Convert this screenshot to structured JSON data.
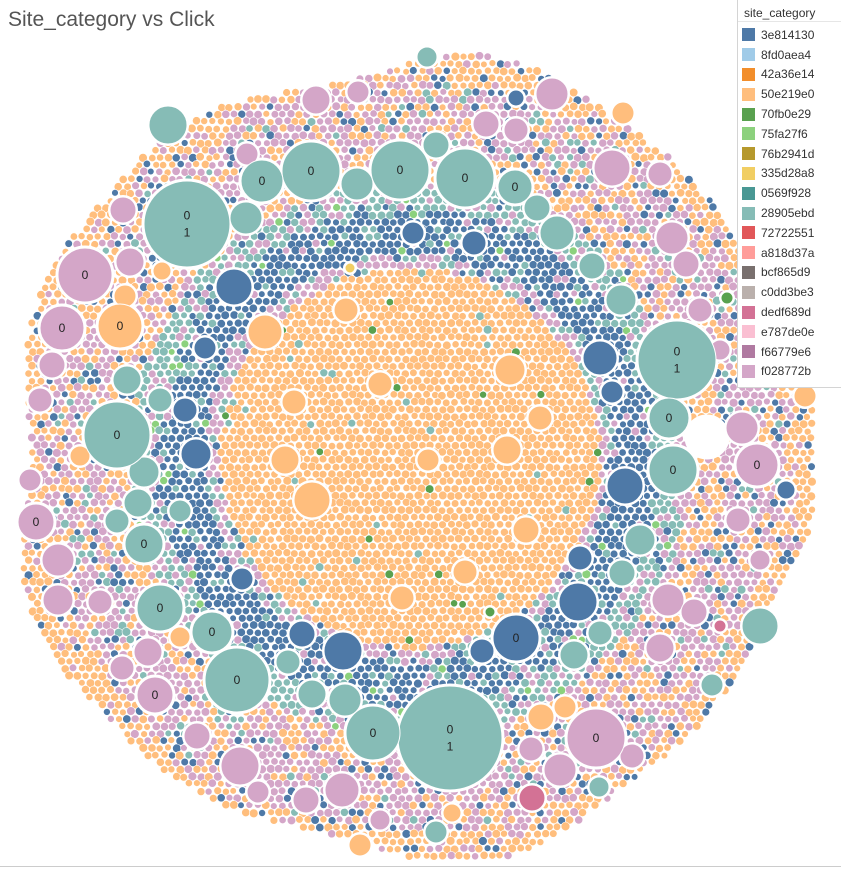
{
  "title": "Site_category vs Click",
  "legend": {
    "title": "site_category",
    "items": [
      {
        "label": "3e814130",
        "color": "#4e79a7"
      },
      {
        "label": "8fd0aea4",
        "color": "#a0cbe8"
      },
      {
        "label": "42a36e14",
        "color": "#f28e2b"
      },
      {
        "label": "50e219e0",
        "color": "#ffbe7d"
      },
      {
        "label": "70fb0e29",
        "color": "#59a14f"
      },
      {
        "label": "75fa27f6",
        "color": "#8cd17d"
      },
      {
        "label": "76b2941d",
        "color": "#b6992d"
      },
      {
        "label": "335d28a8",
        "color": "#f1ce63"
      },
      {
        "label": "0569f928",
        "color": "#499894"
      },
      {
        "label": "28905ebd",
        "color": "#86bcb6"
      },
      {
        "label": "72722551",
        "color": "#e15759"
      },
      {
        "label": "a818d37a",
        "color": "#ff9d9a"
      },
      {
        "label": "bcf865d9",
        "color": "#79706e"
      },
      {
        "label": "c0dd3be3",
        "color": "#bab0ac"
      },
      {
        "label": "dedf689d",
        "color": "#d37295"
      },
      {
        "label": "e787de0e",
        "color": "#fabfd2"
      },
      {
        "label": "f66779e6",
        "color": "#b07aa1"
      },
      {
        "label": "f028772b",
        "color": "#d4a6c8"
      }
    ]
  },
  "chart_data": {
    "type": "packed-bubble",
    "title": "Site_category vs Click",
    "color_field": "site_category",
    "label_field": "Click",
    "labeled_bubbles": [
      {
        "category": "28905ebd",
        "labels": [
          "0",
          "1"
        ]
      },
      {
        "category": "28905ebd",
        "labels": [
          "0",
          "1"
        ]
      },
      {
        "category": "28905ebd",
        "labels": [
          "0",
          "1"
        ]
      },
      {
        "category": "28905ebd",
        "labels": [
          "0"
        ]
      },
      {
        "category": "28905ebd",
        "labels": [
          "0"
        ]
      },
      {
        "category": "28905ebd",
        "labels": [
          "0"
        ]
      },
      {
        "category": "28905ebd",
        "labels": [
          "0"
        ]
      },
      {
        "category": "28905ebd",
        "labels": [
          "0"
        ]
      },
      {
        "category": "28905ebd",
        "labels": [
          "0"
        ]
      },
      {
        "category": "28905ebd",
        "labels": [
          "0"
        ]
      },
      {
        "category": "28905ebd",
        "labels": [
          "0"
        ]
      },
      {
        "category": "28905ebd",
        "labels": [
          "0"
        ]
      },
      {
        "category": "28905ebd",
        "labels": [
          "0"
        ]
      },
      {
        "category": "28905ebd",
        "labels": [
          "0"
        ]
      },
      {
        "category": "28905ebd",
        "labels": [
          "0"
        ]
      },
      {
        "category": "28905ebd",
        "labels": [
          "0"
        ]
      },
      {
        "category": "3e814130",
        "labels": [
          "0"
        ]
      },
      {
        "category": "50e219e0",
        "labels": [
          "0"
        ]
      },
      {
        "category": "f028772b",
        "labels": [
          "0"
        ]
      },
      {
        "category": "f028772b",
        "labels": [
          "0"
        ]
      },
      {
        "category": "f028772b",
        "labels": [
          "0"
        ]
      },
      {
        "category": "f028772b",
        "labels": [
          "0"
        ]
      },
      {
        "category": "f028772b",
        "labels": [
          "0"
        ]
      },
      {
        "category": "f028772b",
        "labels": [
          "0"
        ]
      }
    ],
    "ring_order_inner_to_outer": [
      "50e219e0",
      "3e814130",
      "28905ebd",
      "f028772b",
      "50e219e0"
    ]
  }
}
